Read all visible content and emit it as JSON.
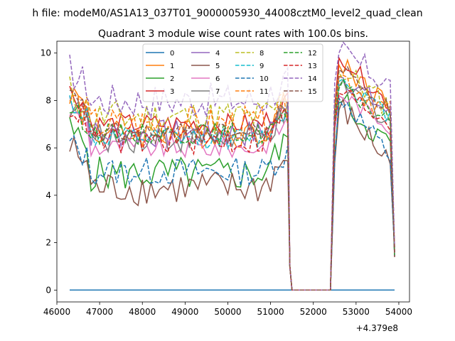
{
  "figure": {
    "suptitle": "h file: modeM0/AS1A13_037T01_9000005930_44008cztM0_level2_quad_clean"
  },
  "chart_data": {
    "type": "line",
    "title": "Quadrant 3 module wise count rates with 100.0s bins.",
    "xlabel": "",
    "ylabel": "",
    "x_offset_label": "+4.379e8",
    "xlim": [
      46000,
      54250
    ],
    "ylim": [
      -0.5,
      10.5
    ],
    "x_ticks": [
      46000,
      47000,
      48000,
      49000,
      50000,
      51000,
      52000,
      53000,
      54000
    ],
    "y_ticks": [
      0,
      2,
      4,
      6,
      8,
      10
    ],
    "x_tick_labels": [
      "46000",
      "47000",
      "48000",
      "49000",
      "50000",
      "51000",
      "52000",
      "53000",
      "54000"
    ],
    "y_tick_labels": [
      "0",
      "2",
      "4",
      "6",
      "8",
      "10"
    ],
    "grid": false,
    "legend": {
      "placement": "upper-center",
      "columns": 4
    },
    "gap": {
      "drop_start": 51400,
      "zero_start": 51500,
      "zero_end": 52400,
      "rise_end": 52500,
      "end": 53900
    },
    "series": [
      {
        "name": "0",
        "color": "#1f77b4",
        "style": "solid",
        "level_a": 0.0,
        "level_b": 0.0,
        "spike": 0.0
      },
      {
        "name": "1",
        "color": "#ff7f0e",
        "style": "solid",
        "level_a": 6.6,
        "level_b": 7.6,
        "spike": 9.5
      },
      {
        "name": "2",
        "color": "#2ca02c",
        "style": "solid",
        "level_a": 4.9,
        "level_b": 5.9,
        "spike": 7.9
      },
      {
        "name": "3",
        "color": "#d62728",
        "style": "solid",
        "level_a": 7.0,
        "level_b": 7.6,
        "spike": 9.8
      },
      {
        "name": "4",
        "color": "#9467bd",
        "style": "solid",
        "level_a": 6.6,
        "level_b": 7.3,
        "spike": 9.0
      },
      {
        "name": "5",
        "color": "#8c564b",
        "style": "solid",
        "level_a": 4.3,
        "level_b": 5.2,
        "spike": 7.6
      },
      {
        "name": "6",
        "color": "#e377c2",
        "style": "solid",
        "level_a": 6.0,
        "level_b": 6.8,
        "spike": 8.2
      },
      {
        "name": "7",
        "color": "#7f7f7f",
        "style": "solid",
        "level_a": 6.4,
        "level_b": 7.0,
        "spike": 8.6
      },
      {
        "name": "8",
        "color": "#bcbd22",
        "style": "dashed",
        "level_a": 7.3,
        "level_b": 7.6,
        "spike": 9.2
      },
      {
        "name": "9",
        "color": "#17becf",
        "style": "dashed",
        "level_a": 6.4,
        "level_b": 7.2,
        "spike": 8.8
      },
      {
        "name": "10",
        "color": "#1f77b4",
        "style": "dashed",
        "level_a": 5.0,
        "level_b": 5.4,
        "spike": 8.1
      },
      {
        "name": "11",
        "color": "#ff7f0e",
        "style": "dashed",
        "level_a": 7.0,
        "level_b": 7.3,
        "spike": 9.0
      },
      {
        "name": "12",
        "color": "#2ca02c",
        "style": "dashed",
        "level_a": 6.6,
        "level_b": 6.9,
        "spike": 8.5
      },
      {
        "name": "13",
        "color": "#d62728",
        "style": "dashed",
        "level_a": 6.3,
        "level_b": 7.0,
        "spike": 8.3
      },
      {
        "name": "14",
        "color": "#9467bd",
        "style": "dashed",
        "level_a": 8.0,
        "level_b": 8.5,
        "spike": 10.0
      },
      {
        "name": "15",
        "color": "#8c564b",
        "style": "dashed",
        "level_a": 6.6,
        "level_b": 7.4,
        "spike": 9.3
      }
    ]
  }
}
